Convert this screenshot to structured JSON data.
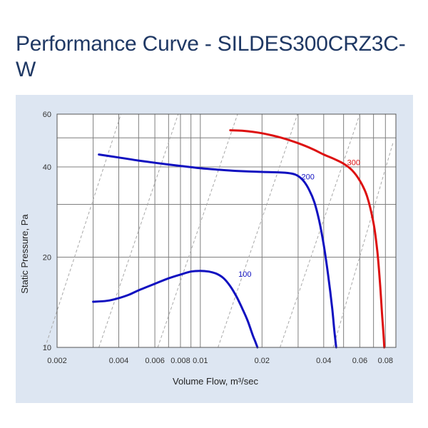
{
  "page": {
    "title": "Performance Curve - SILDES300CRZ3C-W"
  },
  "chart_data": {
    "type": "line",
    "title": "Performance Curve - SILDES300CRZ3C-W",
    "xlabel": "Volume Flow, m³/sec",
    "ylabel": "Static Pressure, Pa",
    "x_scale": "log",
    "y_scale": "log",
    "xlim": [
      0.002,
      0.09
    ],
    "ylim": [
      10,
      60
    ],
    "grid": true,
    "x_ticks": [
      {
        "value": 0.002,
        "label": "0.002"
      },
      {
        "value": 0.004,
        "label": "0.004"
      },
      {
        "value": 0.006,
        "label": "0.006"
      },
      {
        "value": 0.008,
        "label": "0.008"
      },
      {
        "value": 0.01,
        "label": "0.01"
      },
      {
        "value": 0.02,
        "label": "0.02"
      },
      {
        "value": 0.04,
        "label": "0.04"
      },
      {
        "value": 0.06,
        "label": "0.06"
      },
      {
        "value": 0.08,
        "label": "0.08"
      }
    ],
    "x_minor_grid": [
      0.003,
      0.005,
      0.007,
      0.009,
      0.03,
      0.05,
      0.07
    ],
    "y_ticks": [
      {
        "value": 10,
        "label": "10"
      },
      {
        "value": 20,
        "label": "20"
      },
      {
        "value": 40,
        "label": "40"
      },
      {
        "value": 60,
        "label": "60"
      }
    ],
    "y_minor_grid": [
      30,
      50
    ],
    "series": [
      {
        "name": "100",
        "color": "#1010c0",
        "label_at": [
          0.0165,
          17.2
        ],
        "x": [
          0.003,
          0.0035,
          0.004,
          0.0045,
          0.005,
          0.006,
          0.007,
          0.008,
          0.009,
          0.01,
          0.011,
          0.012,
          0.013,
          0.014,
          0.015,
          0.016,
          0.017,
          0.018,
          0.0185,
          0.019
        ],
        "y": [
          14.2,
          14.3,
          14.6,
          15.0,
          15.5,
          16.3,
          17.0,
          17.5,
          17.9,
          18.0,
          17.9,
          17.6,
          17.0,
          16.0,
          14.8,
          13.5,
          12.3,
          11.0,
          10.5,
          10.0
        ]
      },
      {
        "name": "200",
        "color": "#1010c0",
        "label_at": [
          0.0335,
          36.3
        ],
        "x": [
          0.0032,
          0.004,
          0.005,
          0.006,
          0.008,
          0.01,
          0.012,
          0.015,
          0.02,
          0.025,
          0.028,
          0.03,
          0.032,
          0.034,
          0.036,
          0.038,
          0.04,
          0.042,
          0.044,
          0.045,
          0.046
        ],
        "y": [
          44.0,
          43.0,
          42.0,
          41.3,
          40.3,
          39.6,
          39.2,
          38.8,
          38.5,
          38.3,
          38.0,
          37.3,
          35.8,
          33.5,
          30.5,
          26.5,
          22.0,
          17.5,
          13.5,
          11.5,
          10.0
        ]
      },
      {
        "name": "300",
        "color": "#dd1010",
        "label_at": [
          0.056,
          40.6
        ],
        "x": [
          0.014,
          0.016,
          0.02,
          0.025,
          0.03,
          0.035,
          0.04,
          0.045,
          0.05,
          0.055,
          0.06,
          0.065,
          0.07,
          0.073,
          0.075,
          0.077,
          0.078,
          0.079
        ],
        "y": [
          53.0,
          52.8,
          51.8,
          50.0,
          48.0,
          46.0,
          44.0,
          42.5,
          41.0,
          39.0,
          36.0,
          32.0,
          26.0,
          21.0,
          17.0,
          13.0,
          11.5,
          10.0
        ]
      }
    ],
    "system_curves": [
      {
        "x0": 0.00175,
        "y0": 10,
        "x1": 0.0041,
        "y1": 60
      },
      {
        "x0": 0.0032,
        "y0": 10,
        "x1": 0.0078,
        "y1": 60
      },
      {
        "x0": 0.0062,
        "y0": 10,
        "x1": 0.0152,
        "y1": 60
      },
      {
        "x0": 0.0122,
        "y0": 10,
        "x1": 0.0298,
        "y1": 60
      },
      {
        "x0": 0.0245,
        "y0": 10,
        "x1": 0.06,
        "y1": 60
      },
      {
        "x0": 0.0445,
        "y0": 10,
        "x1": 0.087,
        "y1": 48
      }
    ]
  }
}
